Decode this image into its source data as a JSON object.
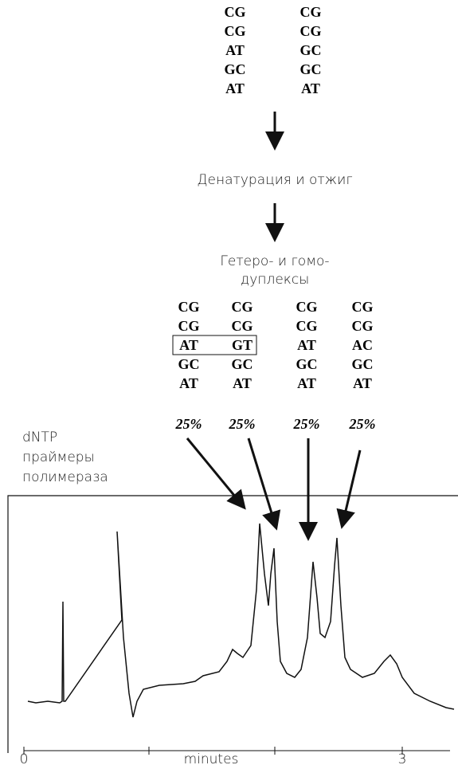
{
  "top_pairs": [
    [
      "CG",
      "CG",
      "AT",
      "GC",
      "AT"
    ],
    [
      "CG",
      "CG",
      "GC",
      "GC",
      "AT"
    ]
  ],
  "step1": "Денатурация и отжиг",
  "step2": [
    "Гетеро- и гомо-",
    "дуплексы"
  ],
  "duplexes": [
    [
      "CG",
      "CG",
      "AT",
      "GC",
      "AT"
    ],
    [
      "CG",
      "CG",
      "GT",
      "GC",
      "AT"
    ],
    [
      "CG",
      "CG",
      "AT",
      "GC",
      "AT"
    ],
    [
      "CG",
      "CG",
      "AC",
      "GC",
      "AT"
    ]
  ],
  "percentages": [
    "25%",
    "25%",
    "25%",
    "25%"
  ],
  "reagents": [
    "dNTP",
    "праймеры",
    "полимераза"
  ],
  "axis": {
    "label": "minutes",
    "ticks": [
      "0",
      "3"
    ]
  }
}
